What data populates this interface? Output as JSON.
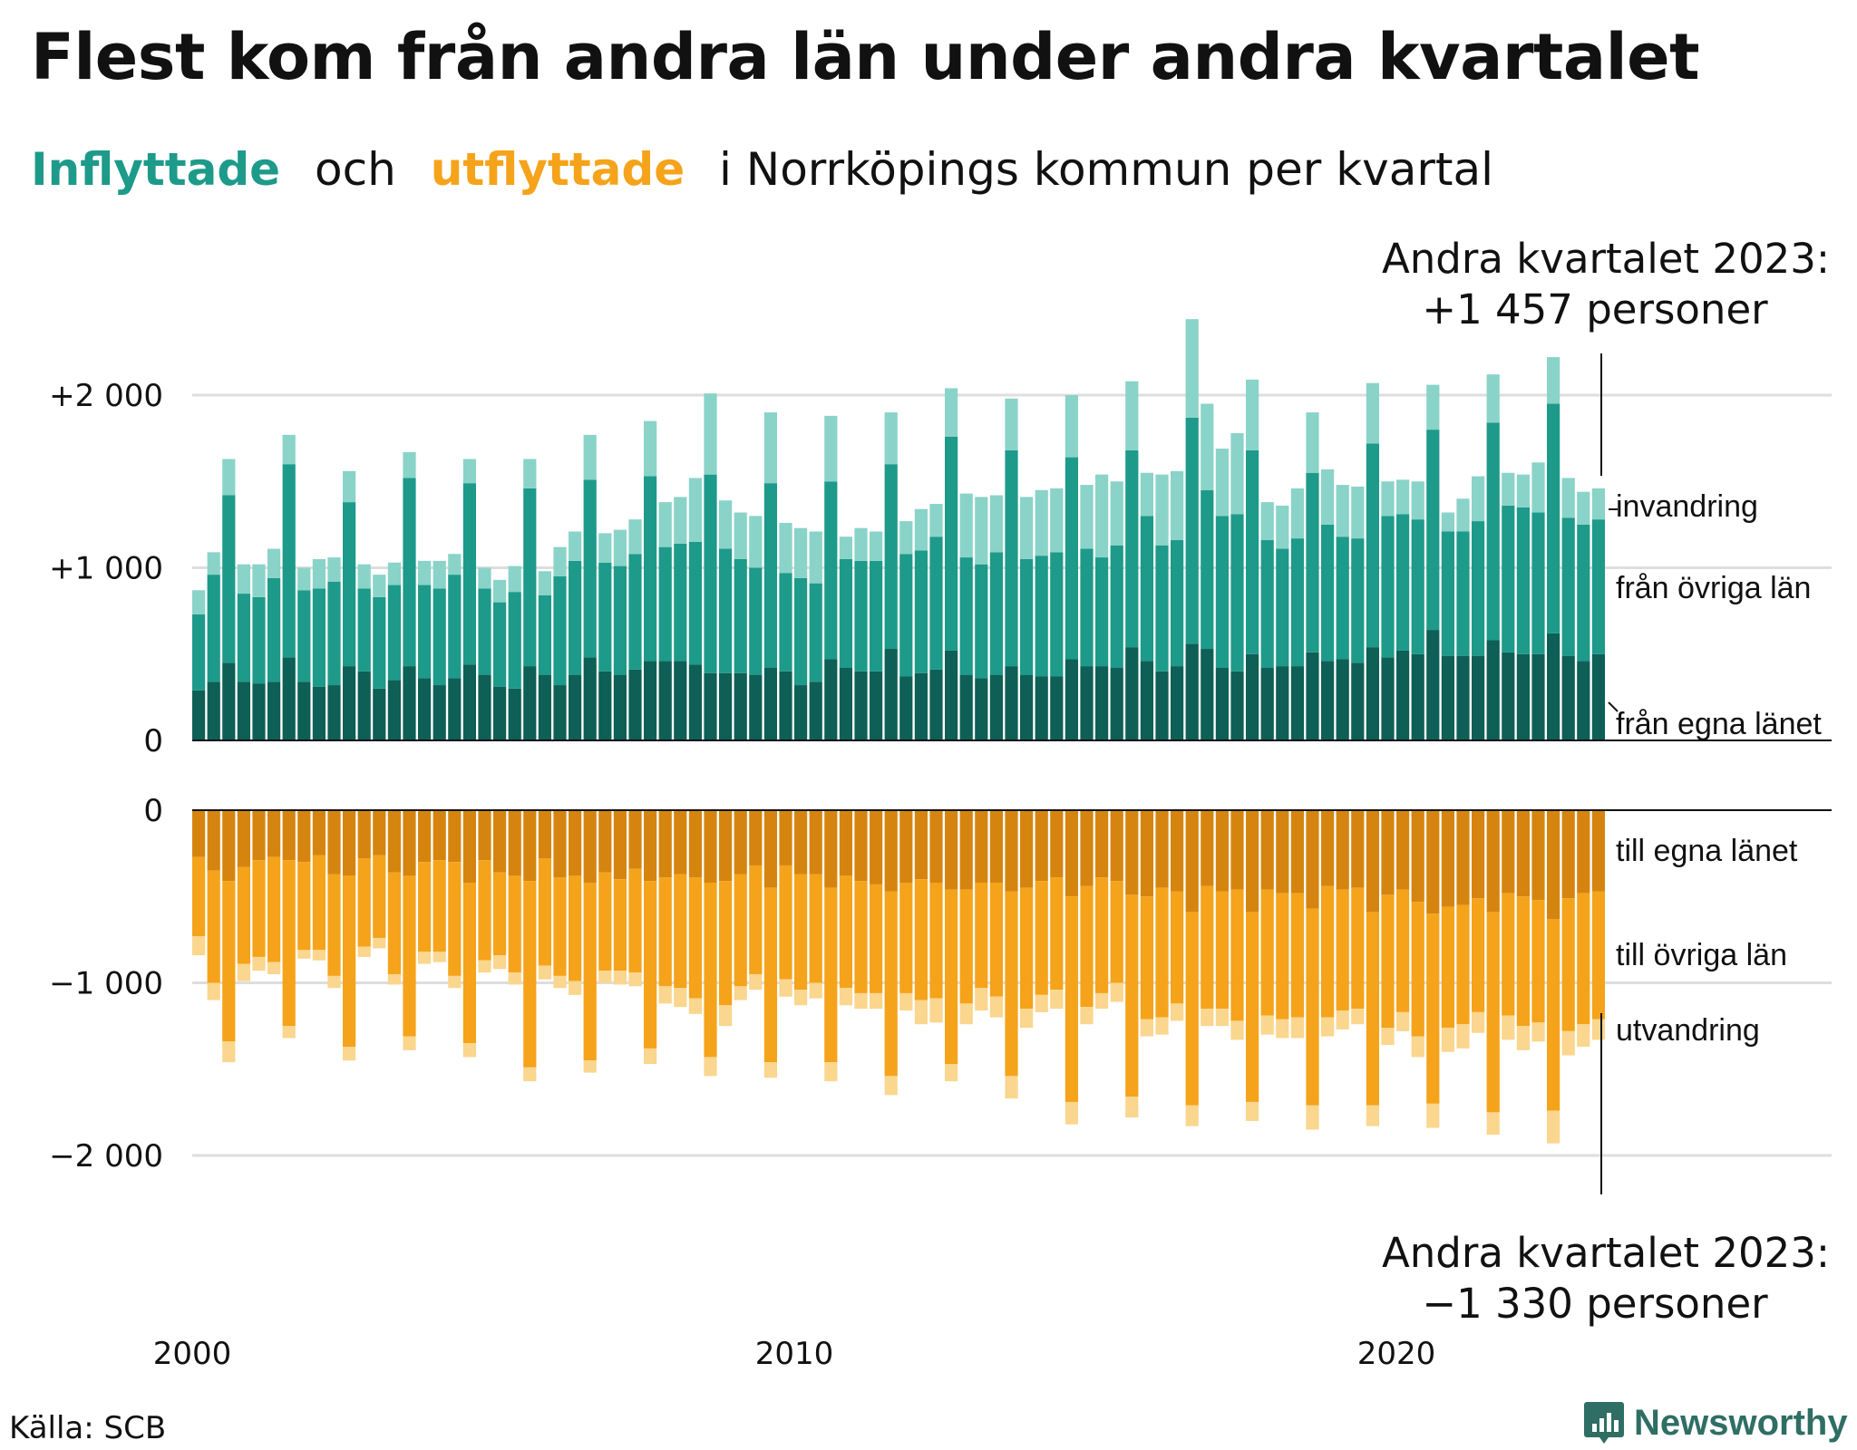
{
  "title": "Flest kom från andra län under andra kvartalet",
  "subtitle": {
    "part1": "Inflyttade",
    "part2": "och",
    "part3": "utflyttade",
    "part4": "i Norrköpings kommun per kvartal"
  },
  "annotation_top": {
    "line1": "Andra kvartalet 2023:",
    "line2": "+1 457 personer"
  },
  "annotation_bottom": {
    "line1": "Andra kvartalet 2023:",
    "line2": "−1 330 personer"
  },
  "source": "Källa: SCB",
  "logo": "Newsworthy",
  "colors": {
    "in_egna": "#0e5f56",
    "in_ovriga": "#1d9a8a",
    "in_invandring": "#8ad3c8",
    "out_egna": "#d5850f",
    "out_ovriga": "#f5a31a",
    "out_utvandring": "#fad68e"
  },
  "chart_data": {
    "type": "bar",
    "title": "",
    "x_tick_labels": [
      "2000",
      "2010",
      "2020"
    ],
    "first_period": "2000 Q1",
    "last_period": "2023 Q2",
    "top_panel": {
      "y_tick_labels": [
        "0",
        "+1 000",
        "+2 000"
      ],
      "ylim": [
        0,
        2300
      ],
      "series_labels": [
        "från egna länet",
        "från övriga län",
        "invandring"
      ],
      "series": [
        {
          "name": "från egna länet",
          "values": [
            290,
            340,
            450,
            340,
            330,
            340,
            480,
            340,
            310,
            320,
            430,
            400,
            300,
            350,
            430,
            360,
            320,
            360,
            440,
            380,
            310,
            300,
            430,
            380,
            320,
            380,
            480,
            400,
            380,
            410,
            460,
            460,
            460,
            440,
            390,
            390,
            390,
            380,
            420,
            400,
            320,
            340,
            470,
            420,
            400,
            400,
            530,
            370,
            390,
            410,
            520,
            380,
            360,
            380,
            430,
            380,
            370,
            370,
            470,
            430,
            430,
            420,
            540,
            460,
            400,
            430,
            560,
            530,
            420,
            400,
            500,
            420,
            430,
            430,
            510,
            460,
            470,
            450,
            540,
            480,
            520,
            500,
            640,
            490,
            490,
            490,
            580,
            510,
            500,
            500,
            620,
            490,
            460,
            500
          ]
        },
        {
          "name": "från övriga län",
          "values": [
            440,
            620,
            970,
            510,
            500,
            600,
            1120,
            530,
            570,
            600,
            950,
            480,
            530,
            550,
            1090,
            540,
            560,
            600,
            1050,
            500,
            490,
            560,
            1030,
            460,
            630,
            660,
            1030,
            630,
            630,
            670,
            1070,
            660,
            680,
            710,
            1150,
            720,
            660,
            620,
            1070,
            570,
            620,
            570,
            1030,
            630,
            640,
            640,
            1070,
            710,
            710,
            770,
            1240,
            680,
            660,
            710,
            1250,
            670,
            700,
            720,
            1170,
            680,
            630,
            710,
            1140,
            840,
            730,
            730,
            1310,
            920,
            880,
            910,
            1180,
            740,
            680,
            740,
            1040,
            790,
            710,
            720,
            1180,
            820,
            790,
            780,
            1160,
            720,
            720,
            780,
            1260,
            850,
            850,
            820,
            1330,
            800,
            790,
            780
          ]
        },
        {
          "name": "invandring",
          "values": [
            140,
            130,
            210,
            170,
            190,
            170,
            170,
            130,
            170,
            140,
            180,
            140,
            130,
            130,
            150,
            140,
            160,
            120,
            140,
            120,
            130,
            150,
            170,
            140,
            170,
            170,
            260,
            170,
            210,
            200,
            320,
            260,
            270,
            370,
            470,
            280,
            270,
            300,
            410,
            290,
            290,
            300,
            380,
            130,
            190,
            170,
            300,
            190,
            240,
            190,
            280,
            370,
            390,
            330,
            300,
            360,
            380,
            370,
            360,
            370,
            480,
            370,
            400,
            250,
            410,
            400,
            570,
            500,
            390,
            470,
            410,
            220,
            250,
            290,
            350,
            320,
            300,
            300,
            350,
            200,
            200,
            220,
            260,
            110,
            190,
            260,
            280,
            190,
            190,
            290,
            270,
            230,
            190,
            180
          ]
        }
      ]
    },
    "bottom_panel": {
      "y_tick_labels": [
        "0",
        "−1 000",
        "−2 000"
      ],
      "ylim": [
        -2300,
        0
      ],
      "series_labels": [
        "till egna länet",
        "till övriga län",
        "utvandring"
      ],
      "series": [
        {
          "name": "till egna länet",
          "values": [
            -270,
            -350,
            -410,
            -330,
            -290,
            -270,
            -290,
            -300,
            -260,
            -370,
            -380,
            -280,
            -260,
            -360,
            -380,
            -300,
            -290,
            -300,
            -420,
            -290,
            -360,
            -380,
            -410,
            -280,
            -390,
            -380,
            -420,
            -360,
            -400,
            -340,
            -410,
            -390,
            -370,
            -390,
            -420,
            -410,
            -370,
            -320,
            -450,
            -320,
            -370,
            -370,
            -450,
            -380,
            -410,
            -430,
            -470,
            -420,
            -400,
            -420,
            -460,
            -460,
            -420,
            -420,
            -470,
            -450,
            -410,
            -390,
            -500,
            -440,
            -390,
            -410,
            -490,
            -500,
            -450,
            -470,
            -590,
            -440,
            -470,
            -460,
            -590,
            -460,
            -480,
            -480,
            -570,
            -440,
            -460,
            -450,
            -590,
            -490,
            -460,
            -530,
            -600,
            -560,
            -550,
            -510,
            -590,
            -480,
            -500,
            -520,
            -630,
            -510,
            -480,
            -470
          ]
        },
        {
          "name": "till övriga län",
          "values": [
            -460,
            -650,
            -930,
            -560,
            -560,
            -610,
            -960,
            -510,
            -550,
            -590,
            -990,
            -510,
            -480,
            -590,
            -930,
            -520,
            -530,
            -660,
            -930,
            -580,
            -480,
            -560,
            -1080,
            -620,
            -570,
            -610,
            -1030,
            -570,
            -530,
            -600,
            -970,
            -630,
            -660,
            -700,
            -1010,
            -720,
            -650,
            -630,
            -1010,
            -660,
            -670,
            -630,
            -1010,
            -650,
            -650,
            -630,
            -1070,
            -640,
            -700,
            -670,
            -1010,
            -660,
            -610,
            -660,
            -1070,
            -700,
            -660,
            -650,
            -1190,
            -700,
            -670,
            -590,
            -1170,
            -710,
            -750,
            -650,
            -1120,
            -710,
            -680,
            -760,
            -1100,
            -730,
            -730,
            -720,
            -1140,
            -760,
            -700,
            -700,
            -1120,
            -770,
            -710,
            -780,
            -1100,
            -700,
            -690,
            -660,
            -1160,
            -710,
            -750,
            -710,
            -1110,
            -770,
            -760,
            -740
          ]
        },
        {
          "name": "utvandring",
          "values": [
            -110,
            -100,
            -120,
            -100,
            -80,
            -70,
            -70,
            -50,
            -60,
            -70,
            -80,
            -60,
            -60,
            -60,
            -80,
            -70,
            -60,
            -70,
            -80,
            -70,
            -80,
            -70,
            -80,
            -80,
            -70,
            -80,
            -70,
            -70,
            -80,
            -80,
            -90,
            -100,
            -110,
            -90,
            -110,
            -120,
            -80,
            -90,
            -90,
            -100,
            -90,
            -90,
            -110,
            -100,
            -90,
            -90,
            -110,
            -100,
            -140,
            -140,
            -100,
            -120,
            -130,
            -120,
            -130,
            -110,
            -100,
            -110,
            -130,
            -100,
            -90,
            -110,
            -120,
            -100,
            -100,
            -100,
            -120,
            -100,
            -100,
            -110,
            -110,
            -110,
            -110,
            -120,
            -140,
            -110,
            -110,
            -90,
            -120,
            -100,
            -110,
            -120,
            -140,
            -140,
            -140,
            -120,
            -130,
            -140,
            -140,
            -110,
            -190,
            -140,
            -130,
            -120
          ]
        }
      ]
    },
    "last_bar_annotations": {
      "top_total": 1457,
      "bottom_total": -1330
    },
    "grid": true
  }
}
